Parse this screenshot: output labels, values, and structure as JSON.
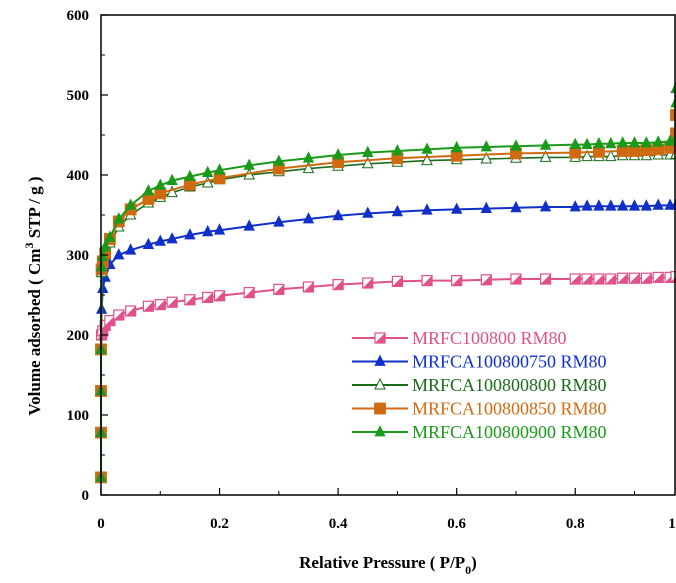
{
  "chart_data": {
    "type": "line",
    "xlabel": {
      "main": "Relative Pressure ( P/P",
      "sub": "0",
      "tail": ")"
    },
    "ylabel": {
      "pre": "Volume adsorbed ( Cm",
      "sup": "3",
      "post": " STP / g )"
    },
    "xlim": [
      0,
      0.97
    ],
    "ylim": [
      0,
      600
    ],
    "x_ticks": [
      "0",
      "0.2",
      "0.4",
      "0.6",
      "0.8",
      "1"
    ],
    "y_ticks": [
      "0",
      "100",
      "200",
      "300",
      "400",
      "500",
      "600"
    ],
    "grid": false,
    "legend": "center-right",
    "series": [
      {
        "name": "MRFC100800 RM80",
        "color": "#e0508a",
        "marker": "half-square",
        "x": [
          0.0,
          0.0,
          0.0,
          0.0,
          0.001,
          0.003,
          0.007,
          0.015,
          0.03,
          0.05,
          0.08,
          0.1,
          0.12,
          0.15,
          0.18,
          0.2,
          0.25,
          0.3,
          0.35,
          0.4,
          0.45,
          0.5,
          0.55,
          0.6,
          0.65,
          0.7,
          0.75,
          0.8,
          0.82,
          0.84,
          0.86,
          0.88,
          0.9,
          0.92,
          0.94,
          0.96,
          0.97
        ],
        "y": [
          22,
          78,
          130,
          182,
          200,
          205,
          212,
          218,
          225,
          230,
          236,
          238,
          241,
          244,
          247,
          249,
          253,
          257,
          260,
          263,
          265,
          267,
          268,
          268,
          269,
          270,
          270,
          270,
          270,
          270,
          270,
          271,
          271,
          271,
          272,
          272,
          273
        ]
      },
      {
        "name": "MRFCA100800750 RM80",
        "color": "#1030c8",
        "marker": "triangle",
        "x": [
          0.0,
          0.0,
          0.0,
          0.0,
          0.001,
          0.003,
          0.007,
          0.015,
          0.03,
          0.05,
          0.08,
          0.1,
          0.12,
          0.15,
          0.18,
          0.2,
          0.25,
          0.3,
          0.35,
          0.4,
          0.45,
          0.5,
          0.55,
          0.6,
          0.65,
          0.7,
          0.75,
          0.8,
          0.82,
          0.84,
          0.86,
          0.88,
          0.9,
          0.92,
          0.94,
          0.96,
          0.97
        ],
        "y": [
          22,
          78,
          130,
          182,
          232,
          258,
          272,
          288,
          300,
          306,
          313,
          317,
          320,
          325,
          329,
          331,
          336,
          341,
          345,
          349,
          352,
          354,
          356,
          357,
          358,
          359,
          360,
          360,
          361,
          361,
          361,
          361,
          361,
          361,
          362,
          362,
          362
        ]
      },
      {
        "name": "MRFCA100800800 RM80",
        "color": "#1a6b1a",
        "marker": "triangle-open",
        "x": [
          0.0,
          0.0,
          0.0,
          0.0,
          0.001,
          0.003,
          0.007,
          0.015,
          0.03,
          0.05,
          0.08,
          0.1,
          0.12,
          0.15,
          0.18,
          0.2,
          0.25,
          0.3,
          0.35,
          0.4,
          0.45,
          0.5,
          0.55,
          0.6,
          0.65,
          0.7,
          0.75,
          0.8,
          0.82,
          0.84,
          0.86,
          0.88,
          0.9,
          0.92,
          0.94,
          0.96,
          0.97
        ],
        "y": [
          22,
          78,
          130,
          182,
          278,
          290,
          300,
          315,
          335,
          350,
          365,
          372,
          378,
          385,
          390,
          394,
          400,
          404,
          408,
          411,
          414,
          416,
          418,
          419,
          420,
          421,
          422,
          422,
          423,
          423,
          423,
          424,
          424,
          424,
          425,
          425,
          426
        ]
      },
      {
        "name": "MRFCA100800850 RM80",
        "color": "#d06a10",
        "marker": "square",
        "x": [
          0.0,
          0.0,
          0.0,
          0.0,
          0.001,
          0.003,
          0.007,
          0.015,
          0.03,
          0.05,
          0.08,
          0.1,
          0.15,
          0.2,
          0.3,
          0.4,
          0.5,
          0.6,
          0.7,
          0.8,
          0.84,
          0.88,
          0.9,
          0.92,
          0.94,
          0.96,
          0.97,
          0.97,
          0.97
        ],
        "y": [
          22,
          78,
          130,
          182,
          282,
          292,
          302,
          320,
          342,
          357,
          370,
          377,
          388,
          396,
          408,
          416,
          421,
          424,
          427,
          428,
          429,
          430,
          430,
          431,
          432,
          434,
          452,
          475,
          435
        ]
      },
      {
        "name": "MRFCA100800900 RM80",
        "color": "#1a9a1a",
        "marker": "triangle",
        "x": [
          0.0,
          0.0,
          0.0,
          0.0,
          0.001,
          0.003,
          0.007,
          0.015,
          0.03,
          0.05,
          0.08,
          0.1,
          0.12,
          0.15,
          0.18,
          0.2,
          0.25,
          0.3,
          0.35,
          0.4,
          0.45,
          0.5,
          0.55,
          0.6,
          0.65,
          0.7,
          0.75,
          0.8,
          0.82,
          0.84,
          0.86,
          0.88,
          0.9,
          0.92,
          0.94,
          0.96,
          0.97,
          0.97,
          0.97
        ],
        "y": [
          22,
          78,
          130,
          182,
          285,
          298,
          310,
          322,
          345,
          362,
          380,
          387,
          393,
          398,
          403,
          406,
          412,
          417,
          421,
          425,
          428,
          430,
          432,
          434,
          435,
          436,
          437,
          438,
          438,
          439,
          439,
          440,
          440,
          440,
          441,
          442,
          445,
          490,
          508
        ]
      }
    ]
  }
}
